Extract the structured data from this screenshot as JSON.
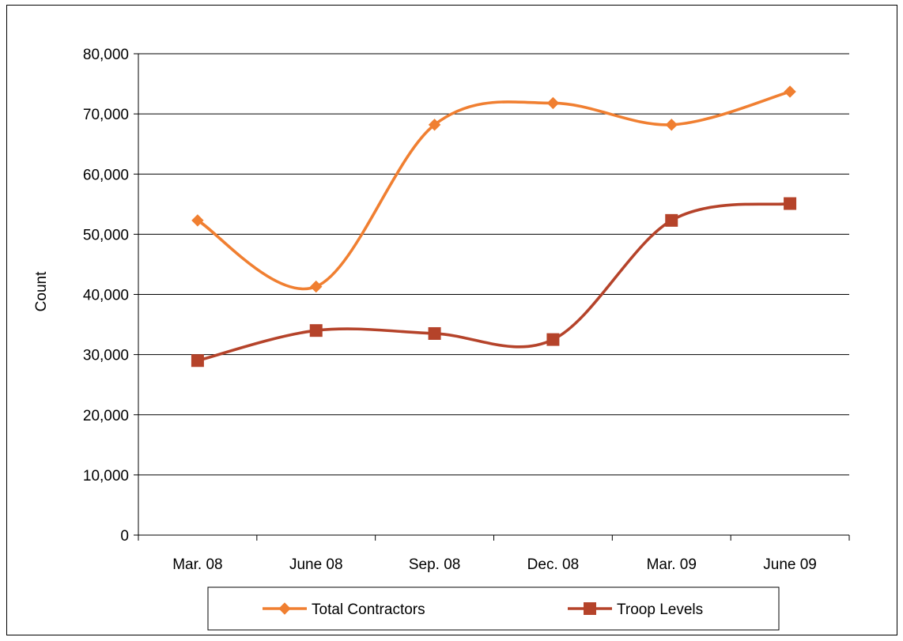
{
  "chart_data": {
    "type": "line",
    "title": "",
    "xlabel": "",
    "ylabel": "Count",
    "ylim": [
      0,
      80000
    ],
    "yticks": [
      0,
      10000,
      20000,
      30000,
      40000,
      50000,
      60000,
      70000,
      80000
    ],
    "ytick_labels": [
      "0",
      "10,000",
      "20,000",
      "30,000",
      "40,000",
      "50,000",
      "60,000",
      "70,000",
      "80,000"
    ],
    "categories": [
      "Mar. 08",
      "June 08",
      "Sep. 08",
      "Dec. 08",
      "Mar. 09",
      "June 09"
    ],
    "grid": true,
    "smooth": true,
    "legend_position": "bottom",
    "series": [
      {
        "name": "Total Contractors",
        "values": [
          52300,
          41300,
          68200,
          71800,
          68200,
          73700
        ],
        "color": "#F07F31",
        "marker": "diamond"
      },
      {
        "name": "Troop Levels",
        "values": [
          29000,
          34000,
          33500,
          32500,
          52300,
          55100
        ],
        "color": "#B5432A",
        "marker": "square"
      }
    ]
  }
}
